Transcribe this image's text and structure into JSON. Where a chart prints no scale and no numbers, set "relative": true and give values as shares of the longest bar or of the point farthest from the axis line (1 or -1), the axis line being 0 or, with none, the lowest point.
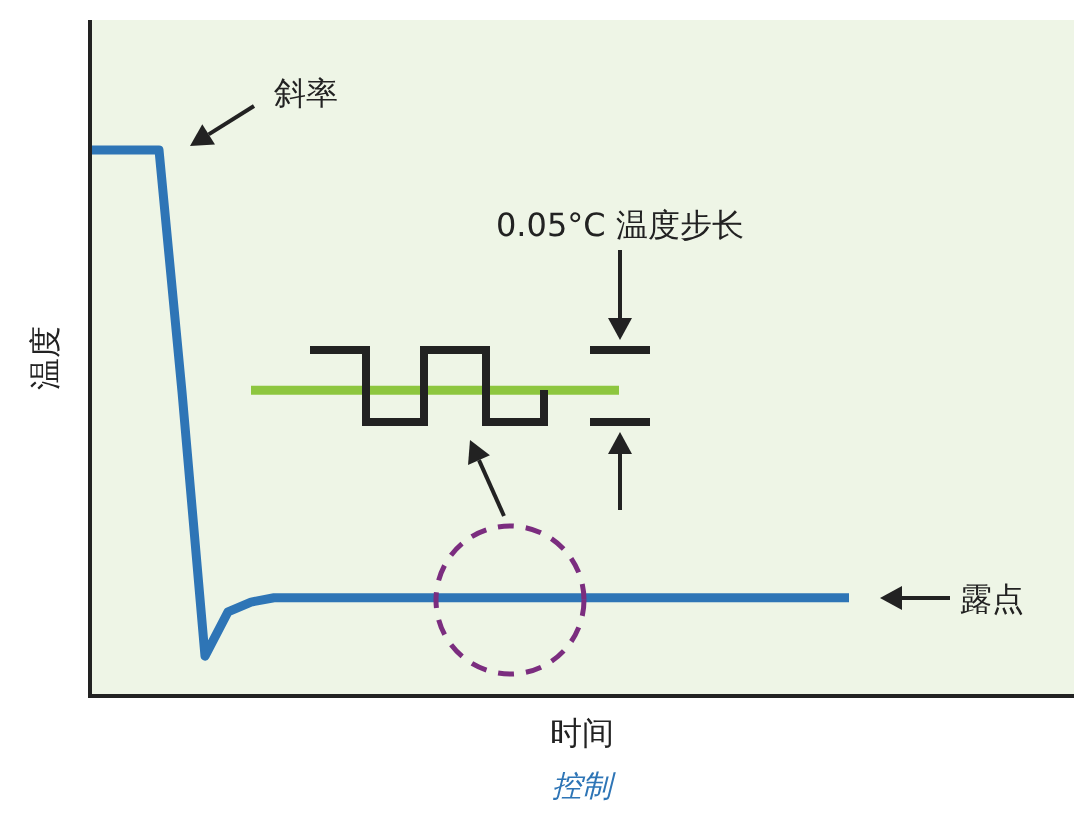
{
  "chart_data": {
    "type": "line",
    "relative": true,
    "xlabel": "时间",
    "ylabel": "温度",
    "categories": [
      null,
      null,
      null,
      null,
      null,
      null,
      null,
      null,
      null,
      null,
      null,
      null,
      null,
      null,
      null,
      null,
      null,
      null,
      null,
      null,
      null,
      null,
      null,
      null,
      null,
      null,
      null,
      null,
      null,
      null,
      null,
      null,
      null,
      null,
      null,
      null,
      null,
      null,
      null,
      null,
      null,
      null,
      null
    ],
    "series": [
      {
        "color": "#2e75b6",
        "values": [
          1,
          1,
          1,
          1,
          0.557,
          0.073,
          0.154,
          0.172,
          0.18,
          0.18,
          0.18,
          0.18,
          0.18,
          0.18,
          0.18,
          0.18,
          0.18,
          0.18,
          0.18,
          0.18,
          0.18,
          0.18,
          0.18,
          0.18,
          0.18,
          0.18,
          0.18,
          0.18,
          0.18,
          0.18,
          0.18,
          0.18,
          0.18,
          0.18,
          null,
          null,
          null,
          null,
          null,
          null,
          null,
          null,
          null
        ]
      },
      {
        "color": "#8dc63f",
        "values": [
          null,
          null,
          null,
          null,
          null,
          null,
          null,
          0.56,
          0.56,
          0.56,
          0.56,
          0.56,
          0.56,
          0.56,
          0.56,
          0.56,
          0.56,
          0.56,
          0.56,
          0.56,
          0.56,
          0.56,
          0.56,
          0.56,
          null,
          null,
          null,
          null,
          null,
          null,
          null,
          null,
          null,
          null,
          null,
          null,
          null,
          null,
          null,
          null,
          null,
          null,
          null
        ]
      }
    ],
    "annotations": [
      "斜率",
      "0.05°C 温度步长",
      "露点",
      "控制"
    ]
  }
}
